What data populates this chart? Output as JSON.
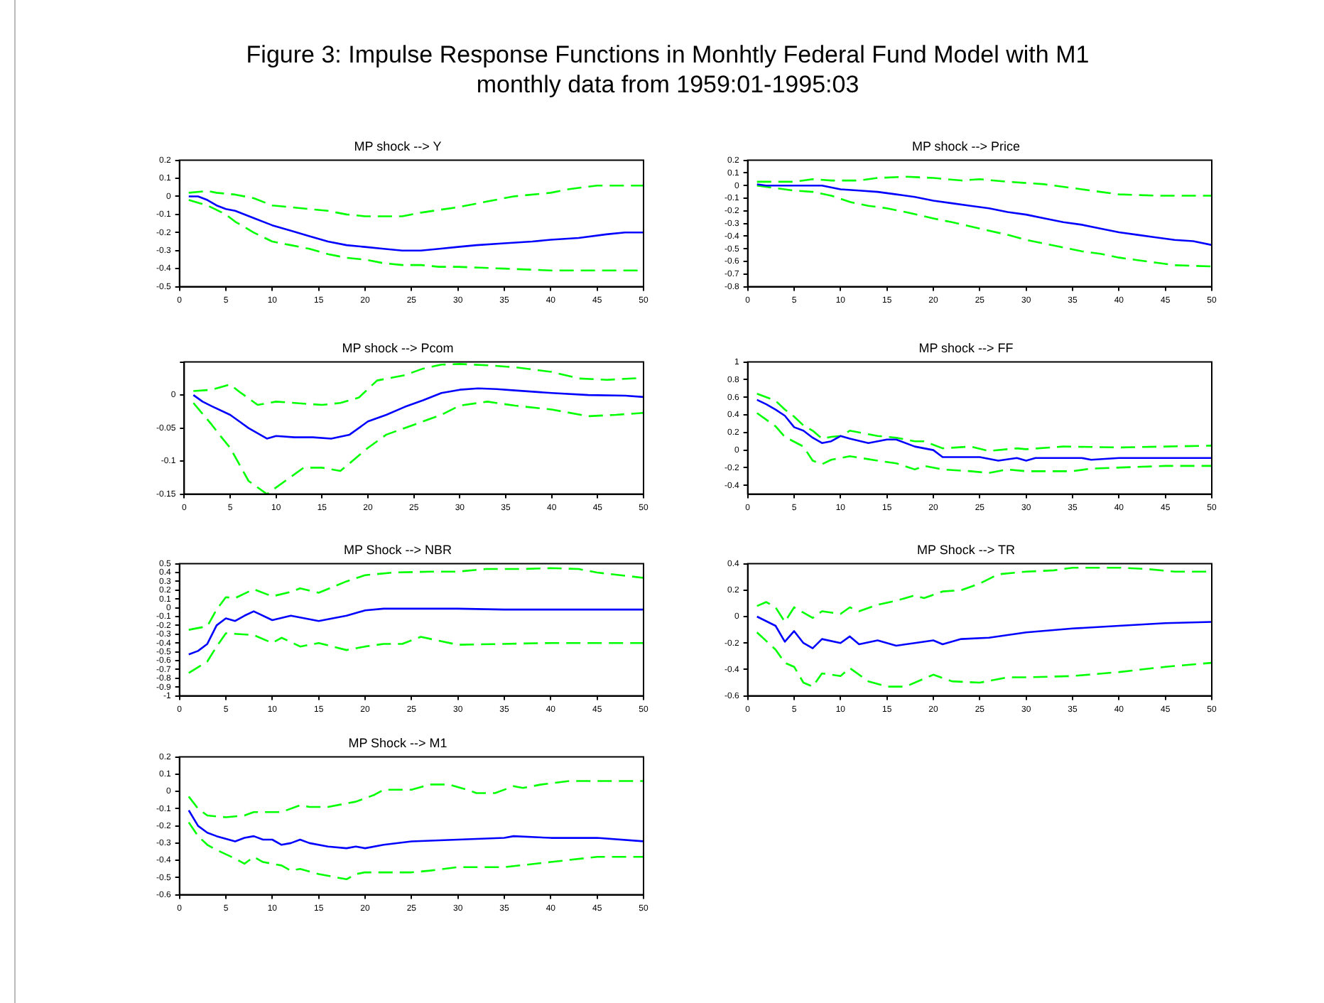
{
  "chart_data": [
    {
      "type": "other",
      "title": "Figure 3: Impulse Response Functions in Monhtly Federal Fund Model with M1",
      "subtitle": "monthly data from 1959:01-1995:03"
    },
    {
      "type": "line",
      "title": "MP shock --> Y",
      "marker": "none",
      "xlim": [
        0,
        50
      ],
      "xticks": [
        0,
        5,
        10,
        15,
        20,
        25,
        30,
        35,
        40,
        45,
        50
      ],
      "ylim": [
        -0.5,
        0.2
      ],
      "yticks": [
        0.2,
        0.1,
        0,
        -0.1,
        -0.2,
        -0.3,
        -0.4,
        -0.5
      ],
      "series": [
        {
          "color": "#0000ff",
          "line_style": "solid",
          "x": [
            1,
            2,
            3,
            4,
            5,
            6,
            8,
            10,
            12,
            14,
            16,
            18,
            20,
            22,
            24,
            26,
            28,
            30,
            32,
            35,
            38,
            40,
            43,
            46,
            48,
            50
          ],
          "values": [
            0,
            0,
            -0.02,
            -0.05,
            -0.07,
            -0.08,
            -0.12,
            -0.16,
            -0.19,
            -0.22,
            -0.25,
            -0.27,
            -0.28,
            -0.29,
            -0.3,
            -0.3,
            -0.29,
            -0.28,
            -0.27,
            -0.26,
            -0.25,
            -0.24,
            -0.23,
            -0.21,
            -0.2,
            -0.2
          ]
        },
        {
          "color": "#00ff00",
          "line_style": "dashed",
          "x": [
            1,
            3,
            4,
            6,
            8,
            10,
            12,
            14,
            16,
            18,
            20,
            24,
            26,
            30,
            33,
            36,
            40,
            42,
            45,
            50
          ],
          "values": [
            0.02,
            0.03,
            0.02,
            0.01,
            -0.01,
            -0.05,
            -0.06,
            -0.07,
            -0.08,
            -0.1,
            -0.11,
            -0.11,
            -0.09,
            -0.06,
            -0.03,
            0,
            0.02,
            0.04,
            0.06,
            0.06
          ]
        },
        {
          "color": "#00ff00",
          "line_style": "dashed",
          "x": [
            1,
            3,
            5,
            6,
            8,
            10,
            12,
            14,
            16,
            18,
            20,
            22,
            24,
            26,
            28,
            30,
            35,
            40,
            45,
            50
          ],
          "values": [
            -0.02,
            -0.05,
            -0.1,
            -0.14,
            -0.2,
            -0.25,
            -0.27,
            -0.29,
            -0.32,
            -0.34,
            -0.35,
            -0.37,
            -0.38,
            -0.38,
            -0.39,
            -0.39,
            -0.4,
            -0.41,
            -0.41,
            -0.41
          ]
        }
      ]
    },
    {
      "type": "line",
      "title": "MP shock --> Price",
      "marker": "none",
      "xlim": [
        0,
        50
      ],
      "xticks": [
        0,
        5,
        10,
        15,
        20,
        25,
        30,
        35,
        40,
        45,
        50
      ],
      "ylim": [
        -0.8,
        0.2
      ],
      "yticks": [
        0.2,
        0.1,
        0,
        -0.1,
        -0.2,
        -0.3,
        -0.4,
        -0.5,
        -0.6,
        -0.7,
        -0.8
      ],
      "series": [
        {
          "color": "#0000ff",
          "line_style": "solid",
          "x": [
            1,
            2,
            5,
            8,
            10,
            12,
            14,
            16,
            18,
            20,
            22,
            24,
            26,
            28,
            30,
            32,
            34,
            36,
            38,
            40,
            42,
            44,
            46,
            48,
            50
          ],
          "values": [
            0.01,
            0,
            0,
            0,
            -0.03,
            -0.04,
            -0.05,
            -0.07,
            -0.09,
            -0.12,
            -0.14,
            -0.16,
            -0.18,
            -0.21,
            -0.23,
            -0.26,
            -0.29,
            -0.31,
            -0.34,
            -0.37,
            -0.39,
            -0.41,
            -0.43,
            -0.44,
            -0.47
          ]
        },
        {
          "color": "#00ff00",
          "line_style": "dashed",
          "x": [
            1,
            5,
            7,
            9,
            12,
            14,
            17,
            20,
            23,
            25,
            28,
            30,
            32,
            34,
            36,
            38,
            40,
            44,
            50
          ],
          "values": [
            0.03,
            0.03,
            0.05,
            0.04,
            0.04,
            0.06,
            0.07,
            0.06,
            0.04,
            0.05,
            0.03,
            0.02,
            0.01,
            -0.01,
            -0.03,
            -0.05,
            -0.07,
            -0.08,
            -0.08
          ]
        },
        {
          "color": "#00ff00",
          "line_style": "dashed",
          "x": [
            1,
            3,
            5,
            7,
            9,
            11,
            13,
            15,
            17,
            20,
            22,
            25,
            28,
            30,
            32,
            34,
            36,
            38,
            40,
            42,
            44,
            46,
            50
          ],
          "values": [
            0,
            -0.02,
            -0.04,
            -0.05,
            -0.08,
            -0.13,
            -0.16,
            -0.18,
            -0.21,
            -0.26,
            -0.29,
            -0.34,
            -0.39,
            -0.43,
            -0.46,
            -0.49,
            -0.52,
            -0.54,
            -0.57,
            -0.59,
            -0.61,
            -0.63,
            -0.64
          ]
        }
      ]
    },
    {
      "type": "line",
      "title": "MP shock --> Pcom",
      "marker": "none",
      "xlim": [
        0,
        50
      ],
      "xticks": [
        0,
        5,
        10,
        15,
        20,
        25,
        30,
        35,
        40,
        45,
        50
      ],
      "ylim": [
        -0.15,
        0.05
      ],
      "yticks": [
        {
          "value": 0.05,
          "label": null
        },
        0,
        -0.05,
        -0.1,
        -0.15
      ],
      "series": [
        {
          "color": "#0000ff",
          "line_style": "solid",
          "x": [
            1,
            2,
            3,
            5,
            6,
            7,
            9,
            10,
            12,
            14,
            16,
            18,
            20,
            22,
            24,
            26,
            28,
            30,
            32,
            34,
            36,
            40,
            44,
            48,
            50
          ],
          "values": [
            0,
            -0.01,
            -0.017,
            -0.03,
            -0.04,
            -0.05,
            -0.066,
            -0.062,
            -0.064,
            -0.064,
            -0.066,
            -0.06,
            -0.04,
            -0.03,
            -0.018,
            -0.008,
            0.003,
            0.008,
            0.01,
            0.009,
            0.007,
            0.003,
            0,
            -0.001,
            -0.003
          ]
        },
        {
          "color": "#00ff00",
          "line_style": "dashed",
          "x": [
            1,
            3,
            5,
            6,
            8,
            10,
            13,
            15,
            17,
            19,
            21,
            24,
            26,
            28,
            30,
            33,
            36,
            40,
            43,
            46,
            50
          ],
          "values": [
            0.006,
            0.008,
            0.016,
            0.005,
            -0.015,
            -0.01,
            -0.013,
            -0.015,
            -0.012,
            -0.004,
            0.022,
            0.03,
            0.04,
            0.046,
            0.047,
            0.045,
            0.042,
            0.035,
            0.025,
            0.023,
            0.026
          ]
        },
        {
          "color": "#00ff00",
          "line_style": "dashed",
          "x": [
            1,
            3,
            4,
            5,
            7,
            9,
            11,
            13,
            15,
            17,
            20,
            22,
            25,
            28,
            30,
            33,
            36,
            40,
            44,
            47,
            50
          ],
          "values": [
            -0.012,
            -0.045,
            -0.063,
            -0.08,
            -0.13,
            -0.15,
            -0.13,
            -0.11,
            -0.11,
            -0.115,
            -0.08,
            -0.06,
            -0.045,
            -0.03,
            -0.016,
            -0.01,
            -0.016,
            -0.022,
            -0.032,
            -0.03,
            -0.027
          ]
        }
      ]
    },
    {
      "type": "line",
      "title": "MP shock --> FF",
      "marker": "none",
      "xlim": [
        0,
        50
      ],
      "xticks": [
        0,
        5,
        10,
        15,
        20,
        25,
        30,
        35,
        40,
        45,
        50
      ],
      "ylim": [
        -0.5,
        1
      ],
      "yticks": [
        1,
        0.8,
        0.6,
        0.4,
        0.2,
        0,
        -0.2,
        -0.4
      ],
      "series": [
        {
          "color": "#0000ff",
          "line_style": "solid",
          "x": [
            1,
            2,
            3,
            4,
            5,
            6,
            7,
            8,
            9,
            10,
            11,
            13,
            15,
            16,
            18,
            20,
            21,
            25,
            27,
            29,
            30,
            31,
            36,
            37,
            40,
            50
          ],
          "values": [
            0.57,
            0.52,
            0.46,
            0.39,
            0.26,
            0.22,
            0.14,
            0.08,
            0.1,
            0.16,
            0.13,
            0.08,
            0.12,
            0.12,
            0.04,
            0,
            -0.08,
            -0.08,
            -0.12,
            -0.09,
            -0.12,
            -0.09,
            -0.09,
            -0.11,
            -0.09,
            -0.09
          ]
        },
        {
          "color": "#00ff00",
          "line_style": "dashed",
          "x": [
            1,
            3,
            4,
            5,
            6,
            7,
            8,
            9,
            10,
            11,
            13,
            14,
            16,
            18,
            19,
            21,
            24,
            26,
            29,
            30,
            34,
            40,
            45,
            50
          ],
          "values": [
            0.64,
            0.56,
            0.46,
            0.38,
            0.28,
            0.22,
            0.13,
            0.15,
            0.16,
            0.22,
            0.18,
            0.16,
            0.14,
            0.1,
            0.1,
            0.02,
            0.04,
            -0.01,
            0.02,
            0.01,
            0.04,
            0.03,
            0.04,
            0.05
          ]
        },
        {
          "color": "#00ff00",
          "line_style": "dashed",
          "x": [
            1,
            3,
            4,
            6,
            7,
            8,
            9,
            11,
            14,
            16,
            18,
            19,
            21,
            24,
            26,
            28,
            30,
            35,
            37,
            45,
            50
          ],
          "values": [
            0.42,
            0.27,
            0.15,
            0.04,
            -0.12,
            -0.16,
            -0.11,
            -0.07,
            -0.12,
            -0.15,
            -0.22,
            -0.18,
            -0.22,
            -0.24,
            -0.26,
            -0.22,
            -0.24,
            -0.24,
            -0.21,
            -0.18,
            -0.18
          ]
        }
      ]
    },
    {
      "type": "line",
      "title": "MP Shock --> NBR",
      "marker": "none",
      "xlim": [
        0,
        50
      ],
      "xticks": [
        0,
        5,
        10,
        15,
        20,
        25,
        30,
        35,
        40,
        45,
        50
      ],
      "ylim": [
        -1,
        0.5
      ],
      "yticks": [
        0.5,
        0.4,
        0.3,
        0.2,
        0.1,
        0,
        -0.1,
        -0.2,
        -0.3,
        -0.4,
        -0.5,
        -0.6,
        -0.7,
        -0.8,
        -0.9,
        -1
      ],
      "series": [
        {
          "color": "#0000ff",
          "line_style": "solid",
          "x": [
            1,
            2,
            3,
            4,
            5,
            6,
            7,
            8,
            10,
            12,
            14,
            15,
            18,
            20,
            22,
            25,
            30,
            35,
            40,
            45,
            50
          ],
          "values": [
            -0.53,
            -0.49,
            -0.41,
            -0.2,
            -0.12,
            -0.15,
            -0.09,
            -0.04,
            -0.14,
            -0.09,
            -0.13,
            -0.15,
            -0.09,
            -0.03,
            -0.01,
            -0.01,
            -0.01,
            -0.02,
            -0.02,
            -0.02,
            -0.02
          ]
        },
        {
          "color": "#00ff00",
          "line_style": "dashed",
          "x": [
            1,
            3,
            4,
            5,
            6,
            8,
            10,
            12,
            13,
            15,
            18,
            20,
            23,
            27,
            30,
            33,
            37,
            40,
            43,
            45,
            50
          ],
          "values": [
            -0.25,
            -0.21,
            -0.02,
            0.12,
            0.11,
            0.21,
            0.13,
            0.18,
            0.22,
            0.17,
            0.3,
            0.37,
            0.4,
            0.41,
            0.41,
            0.44,
            0.44,
            0.45,
            0.44,
            0.4,
            0.34
          ]
        },
        {
          "color": "#00ff00",
          "line_style": "dashed",
          "x": [
            1,
            3,
            4,
            5,
            8,
            10,
            11,
            13,
            15,
            18,
            20,
            22,
            24,
            26,
            30,
            35,
            40,
            50
          ],
          "values": [
            -0.74,
            -0.61,
            -0.44,
            -0.29,
            -0.31,
            -0.4,
            -0.34,
            -0.44,
            -0.4,
            -0.48,
            -0.44,
            -0.41,
            -0.41,
            -0.33,
            -0.42,
            -0.41,
            -0.4,
            -0.4
          ]
        }
      ]
    },
    {
      "type": "line",
      "title": "MP Shock --> TR",
      "marker": "none",
      "xlim": [
        0,
        50
      ],
      "xticks": [
        0,
        5,
        10,
        15,
        20,
        25,
        30,
        35,
        40,
        45,
        50
      ],
      "ylim": [
        -0.6,
        0.4
      ],
      "yticks": [
        0.4,
        0.2,
        0,
        -0.2,
        -0.4,
        -0.6
      ],
      "series": [
        {
          "color": "#0000ff",
          "line_style": "solid",
          "x": [
            1,
            3,
            4,
            5,
            6,
            7,
            8,
            10,
            11,
            12,
            14,
            16,
            18,
            20,
            21,
            23,
            26,
            30,
            35,
            40,
            45,
            50
          ],
          "values": [
            0,
            -0.07,
            -0.19,
            -0.11,
            -0.2,
            -0.24,
            -0.17,
            -0.2,
            -0.15,
            -0.21,
            -0.18,
            -0.22,
            -0.2,
            -0.18,
            -0.21,
            -0.17,
            -0.16,
            -0.12,
            -0.09,
            -0.07,
            -0.05,
            -0.04
          ]
        },
        {
          "color": "#00ff00",
          "line_style": "dashed",
          "x": [
            1,
            2,
            3,
            4,
            5,
            6,
            7,
            8,
            10,
            11,
            12,
            14,
            16,
            18,
            19,
            21,
            23,
            25,
            27,
            30,
            33,
            35,
            40,
            43,
            46,
            50
          ],
          "values": [
            0.08,
            0.11,
            0.07,
            -0.04,
            0.07,
            0.03,
            -0.01,
            0.04,
            0.02,
            0.07,
            0.04,
            0.09,
            0.12,
            0.16,
            0.14,
            0.19,
            0.2,
            0.25,
            0.32,
            0.34,
            0.35,
            0.37,
            0.37,
            0.36,
            0.34,
            0.34
          ]
        },
        {
          "color": "#00ff00",
          "line_style": "dashed",
          "x": [
            1,
            3,
            4,
            5,
            6,
            7,
            8,
            10,
            11,
            13,
            15,
            17,
            20,
            22,
            25,
            28,
            30,
            35,
            40,
            45,
            50
          ],
          "values": [
            -0.12,
            -0.25,
            -0.35,
            -0.38,
            -0.5,
            -0.53,
            -0.43,
            -0.45,
            -0.39,
            -0.49,
            -0.53,
            -0.53,
            -0.44,
            -0.49,
            -0.5,
            -0.46,
            -0.46,
            -0.45,
            -0.42,
            -0.38,
            -0.35
          ]
        }
      ]
    },
    {
      "type": "line",
      "title": "MP Shock --> M1",
      "marker": "none",
      "xlim": [
        0,
        50
      ],
      "xticks": [
        0,
        5,
        10,
        15,
        20,
        25,
        30,
        35,
        40,
        45,
        50
      ],
      "ylim": [
        -0.6,
        0.2
      ],
      "yticks": [
        0.2,
        0.1,
        0,
        -0.1,
        -0.2,
        -0.3,
        -0.4,
        -0.5,
        -0.6
      ],
      "series": [
        {
          "color": "#0000ff",
          "line_style": "solid",
          "x": [
            1,
            2,
            3,
            4,
            6,
            7,
            8,
            9,
            10,
            11,
            12,
            13,
            14,
            16,
            18,
            19,
            20,
            22,
            25,
            30,
            35,
            36,
            40,
            45,
            50
          ],
          "values": [
            -0.11,
            -0.2,
            -0.24,
            -0.26,
            -0.29,
            -0.27,
            -0.26,
            -0.28,
            -0.28,
            -0.31,
            -0.3,
            -0.28,
            -0.3,
            -0.32,
            -0.33,
            -0.32,
            -0.33,
            -0.31,
            -0.29,
            -0.28,
            -0.27,
            -0.26,
            -0.27,
            -0.27,
            -0.29
          ]
        },
        {
          "color": "#00ff00",
          "line_style": "dashed",
          "x": [
            1,
            2,
            3,
            5,
            7,
            8,
            11,
            13,
            14,
            16,
            18,
            19,
            21,
            22,
            25,
            27,
            29,
            31,
            32,
            34,
            36,
            37,
            39,
            42,
            50
          ],
          "values": [
            -0.03,
            -0.1,
            -0.14,
            -0.15,
            -0.14,
            -0.12,
            -0.12,
            -0.08,
            -0.09,
            -0.09,
            -0.07,
            -0.06,
            -0.02,
            0.01,
            0.01,
            0.04,
            0.04,
            0.01,
            -0.01,
            -0.01,
            0.03,
            0.02,
            0.04,
            0.06,
            0.06
          ]
        },
        {
          "color": "#00ff00",
          "line_style": "dashed",
          "x": [
            1,
            2,
            3,
            4,
            6,
            7,
            8,
            9,
            11,
            12,
            13,
            15,
            17,
            18,
            19,
            20,
            25,
            27,
            30,
            35,
            40,
            45,
            50
          ],
          "values": [
            -0.18,
            -0.26,
            -0.31,
            -0.34,
            -0.39,
            -0.42,
            -0.38,
            -0.41,
            -0.43,
            -0.46,
            -0.45,
            -0.48,
            -0.5,
            -0.51,
            -0.48,
            -0.47,
            -0.47,
            -0.46,
            -0.44,
            -0.44,
            -0.41,
            -0.38,
            -0.38
          ]
        }
      ]
    }
  ]
}
